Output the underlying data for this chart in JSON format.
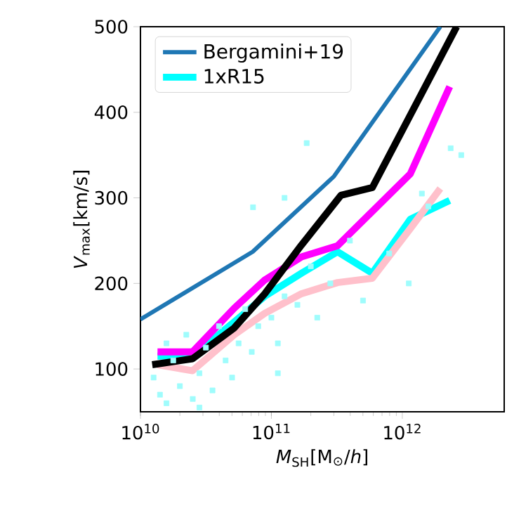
{
  "chart_data": {
    "type": "line",
    "xlabel": "*M*$_{SH}$[M$_{⊙}$/*h*]",
    "ylabel": "*V*$_{max}$[km/s]",
    "log": "x",
    "xlim": [
      10000000000.0,
      6000000000000.0
    ],
    "ylim": [
      50,
      500
    ],
    "xticks": [
      {
        "value": 10000000000.0,
        "label": "10$^{10}$"
      },
      {
        "value": 100000000000.0,
        "label": "10$^{11}$"
      },
      {
        "value": 1000000000000.0,
        "label": "10$^{12}$"
      }
    ],
    "yticks": [
      100,
      200,
      300,
      400,
      500
    ],
    "legend": "top left",
    "series": [
      {
        "type": "scatter",
        "marker": "square",
        "color": "#9ffcfc",
        "x": [
          12600000000.0,
          14100000000.0,
          15800000000.0,
          17800000000.0,
          20000000000.0,
          22400000000.0,
          25100000000.0,
          28200000000.0,
          31600000000.0,
          35500000000.0,
          39800000000.0,
          44700000000.0,
          50100000000.0,
          56200000000.0,
          63100000000.0,
          70800000000.0,
          79400000000.0,
          100000000000.0,
          112000000000.0,
          126000000000.0,
          158000000000.0,
          200000000000.0,
          224000000000.0,
          282000000000.0,
          398000000000.0,
          501000000000.0,
          794000000000.0,
          1120000000000.0,
          1580000000000.0,
          2820000000000.0,
          112000000000.0,
          15800000000.0,
          28200000000.0,
          186000000000.0,
          126000000000.0,
          72400000000.0,
          1410000000000.0,
          2340000000000.0
        ],
        "values": [
          90,
          70,
          130,
          110,
          80,
          140,
          65,
          95,
          125,
          75,
          150,
          110,
          90,
          130,
          170,
          120,
          150,
          160,
          130,
          185,
          175,
          220,
          160,
          200,
          250,
          180,
          235,
          200,
          290,
          350,
          95,
          60,
          55,
          364,
          300,
          289,
          305,
          358
        ]
      },
      {
        "name": "Bergamini+19",
        "color": "#1f77b4",
        "x": [
          10000000000.0,
          72000000000.0,
          300000000000.0,
          1950000000000.0
        ],
        "values": [
          158,
          237,
          325,
          500
        ]
      },
      {
        "name": "1xR15",
        "color": "#00ffff",
        "x": [
          13500000000.0,
          25000000000.0,
          52000000000.0,
          89000000000.0,
          170000000000.0,
          320000000000.0,
          590000000000.0,
          1150000000000.0,
          2300000000000.0
        ],
        "values": [
          115,
          115,
          155,
          185,
          212,
          237,
          212,
          275,
          297
        ]
      },
      {
        "color": "#ffc0cb",
        "x": [
          13500000000.0,
          25000000000.0,
          52000000000.0,
          89000000000.0,
          170000000000.0,
          320000000000.0,
          590000000000.0,
          1150000000000.0,
          1950000000000.0
        ],
        "values": [
          105,
          98,
          140,
          165,
          188,
          201,
          206,
          264,
          311
        ]
      },
      {
        "color": "#ff00ff",
        "x": [
          13500000000.0,
          25000000000.0,
          52000000000.0,
          89000000000.0,
          170000000000.0,
          320000000000.0,
          1150000000000.0,
          2300000000000.0
        ],
        "values": [
          120,
          120,
          171,
          204,
          231,
          244,
          328,
          430
        ]
      },
      {
        "color": "#000000",
        "x": [
          12300000000.0,
          25000000000.0,
          52000000000.0,
          89000000000.0,
          170000000000.0,
          340000000000.0,
          590000000000.0,
          2600000000000.0
        ],
        "values": [
          105,
          112,
          148,
          188,
          245,
          303,
          312,
          500
        ]
      }
    ]
  }
}
